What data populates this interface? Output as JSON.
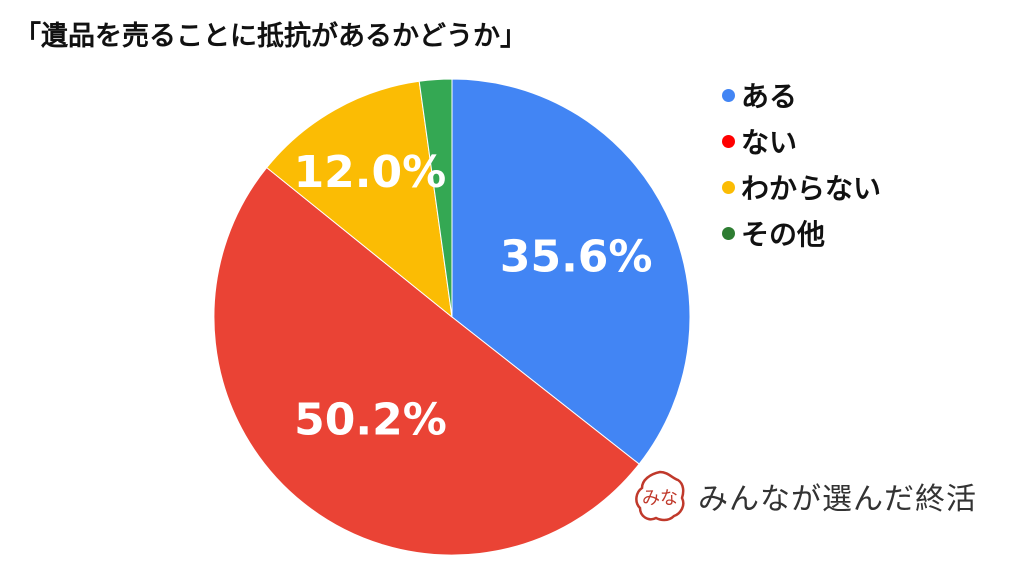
{
  "chart_data": {
    "type": "pie",
    "title": "「遺品を売ることに抵抗があるかどうか」",
    "categories": [
      "ある",
      "ない",
      "わからない",
      "その他"
    ],
    "values": [
      35.6,
      50.2,
      12.0,
      2.2
    ],
    "value_labels": [
      "35.6%",
      "50.2%",
      "12.0%",
      ""
    ],
    "colors": [
      "#4285F4",
      "#EA4335",
      "#FBBC04",
      "#34A853"
    ],
    "legend_colors": [
      "#4285F4",
      "#FF0000",
      "#FBBC04",
      "#2E7D32"
    ],
    "legend_position": "right",
    "start_angle_deg": 0,
    "direction": "clockwise"
  },
  "brand": {
    "logo_text": "みな",
    "name": "みんなが選んだ終活",
    "color": "#C0392B"
  }
}
